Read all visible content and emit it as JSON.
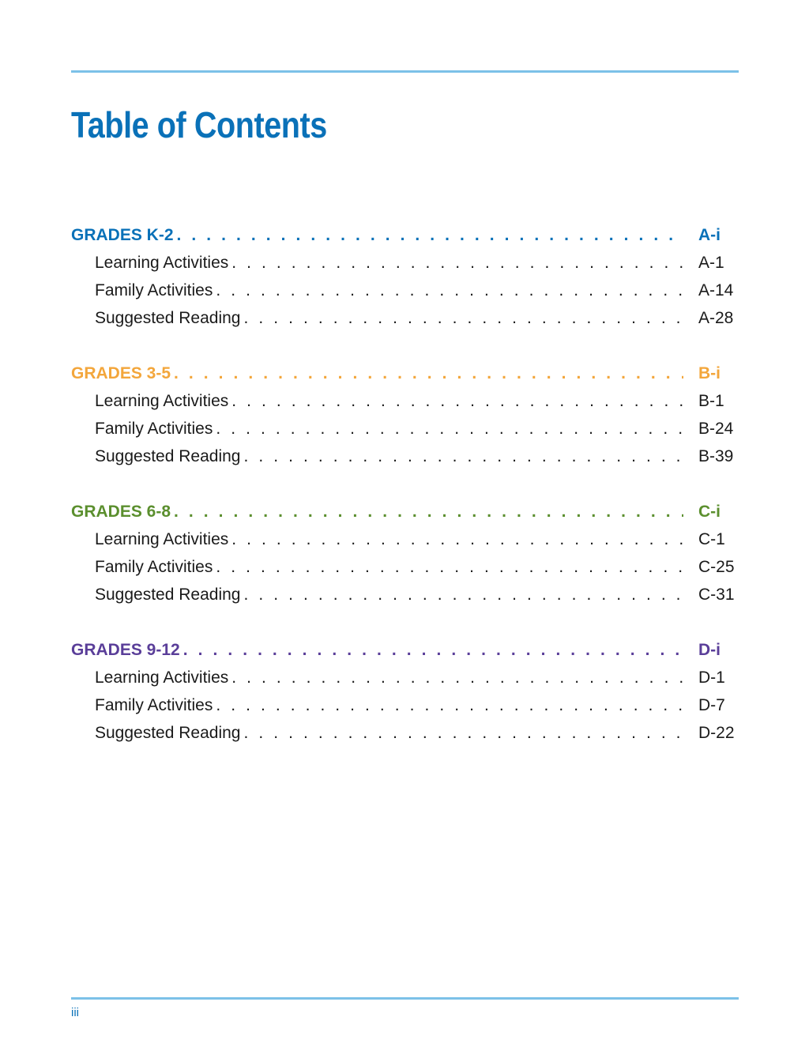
{
  "title": "Table of Contents",
  "colors": {
    "accent": "#0a71b8",
    "rule": "#7cc1e8",
    "grades_k2": "#0a71b8",
    "grades_35": "#f3a63b",
    "grades_68": "#5b8f2e",
    "grades_912": "#5a3e99"
  },
  "sections": [
    {
      "label": "GRADES K-2",
      "page": "A-i",
      "items": [
        {
          "label": "Learning Activities",
          "page": "A-1"
        },
        {
          "label": "Family Activities",
          "page": "A-14"
        },
        {
          "label": "Suggested Reading",
          "page": "A-28"
        }
      ]
    },
    {
      "label": "GRADES 3-5",
      "page": "B-i",
      "items": [
        {
          "label": "Learning Activities",
          "page": "B-1"
        },
        {
          "label": "Family Activities",
          "page": "B-24"
        },
        {
          "label": "Suggested Reading",
          "page": "B-39"
        }
      ]
    },
    {
      "label": "GRADES 6-8",
      "page": "C-i",
      "items": [
        {
          "label": "Learning Activities",
          "page": "C-1"
        },
        {
          "label": "Family Activities",
          "page": "C-25"
        },
        {
          "label": "Suggested Reading",
          "page": "C-31"
        }
      ]
    },
    {
      "label": "GRADES 9-12",
      "page": "D-i",
      "items": [
        {
          "label": "Learning Activities",
          "page": "D-1"
        },
        {
          "label": "Family Activities",
          "page": "D-7"
        },
        {
          "label": "Suggested Reading",
          "page": "D-22"
        }
      ]
    }
  ],
  "folio": "iii"
}
